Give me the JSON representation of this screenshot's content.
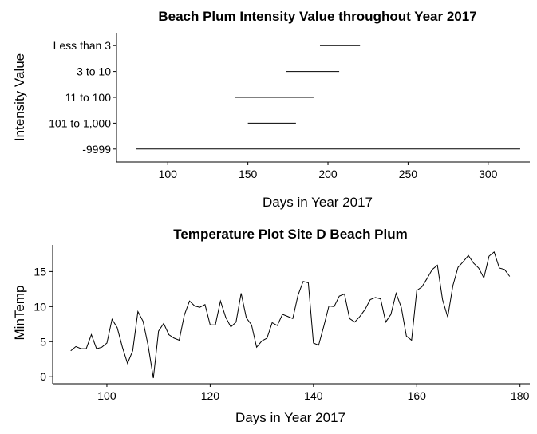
{
  "chart_data": [
    {
      "type": "range",
      "title": "Beach Plum Intensity Value throughout Year 2017",
      "xlabel": "Days in Year 2017",
      "ylabel": "Intensity Value",
      "xlim": [
        68,
        326
      ],
      "xticks": [
        100,
        150,
        200,
        250,
        300
      ],
      "categories": [
        "Less than 3",
        "3 to 10",
        "11 to 100",
        "101 to 1,000",
        "-9999"
      ],
      "ranges": [
        {
          "category": "Less than 3",
          "start": 195,
          "end": 220
        },
        {
          "category": "3 to 10",
          "start": 174,
          "end": 207
        },
        {
          "category": "11 to 100",
          "start": 142,
          "end": 191
        },
        {
          "category": "101 to 1,000",
          "start": 150,
          "end": 180
        },
        {
          "category": "-9999",
          "start": 80,
          "end": 320
        }
      ]
    },
    {
      "type": "line",
      "title": "Temperature Plot Site D Beach Plum",
      "xlabel": "Days in Year 2017",
      "ylabel": "MinTemp",
      "xlim": [
        89.5,
        181.9
      ],
      "ylim": [
        -1,
        18.8
      ],
      "xticks": [
        100,
        120,
        140,
        160,
        180
      ],
      "yticks": [
        0,
        5,
        10,
        15
      ],
      "x": [
        93,
        94,
        95,
        96,
        97,
        98,
        99,
        100,
        101,
        102,
        103,
        104,
        105,
        106,
        107,
        108,
        109,
        110,
        111,
        112,
        113,
        114,
        115,
        116,
        117,
        118,
        119,
        120,
        121,
        122,
        123,
        124,
        125,
        126,
        127,
        128,
        129,
        130,
        131,
        132,
        133,
        134,
        135,
        136,
        137,
        138,
        139,
        140,
        141,
        142,
        143,
        144,
        145,
        146,
        147,
        148,
        149,
        150,
        151,
        152,
        153,
        154,
        155,
        156,
        157,
        158,
        159,
        160,
        161,
        162,
        163,
        164,
        165,
        166,
        167,
        168,
        169,
        170,
        171,
        172,
        173,
        174,
        175,
        176,
        177,
        178
      ],
      "y": [
        3.7,
        4.3,
        4.0,
        4.0,
        6.0,
        4.0,
        4.2,
        4.8,
        8.2,
        7.0,
        4.2,
        1.9,
        3.7,
        9.3,
        7.9,
        4.4,
        -0.2,
        6.5,
        7.6,
        6.0,
        5.5,
        5.2,
        8.8,
        10.8,
        10.1,
        9.9,
        10.3,
        7.4,
        7.4,
        10.8,
        8.5,
        7.1,
        7.8,
        11.9,
        8.4,
        7.4,
        4.2,
        5.1,
        5.5,
        7.7,
        7.3,
        8.9,
        8.6,
        8.3,
        11.6,
        13.6,
        13.4,
        4.8,
        4.5,
        7.2,
        10.1,
        10.0,
        11.5,
        11.8,
        8.3,
        7.8,
        8.6,
        9.6,
        11.0,
        11.3,
        11.1,
        7.8,
        8.9,
        11.9,
        9.9,
        5.8,
        5.2,
        12.3,
        12.8,
        14.0,
        15.3,
        15.9,
        11.0,
        8.5,
        13.0,
        15.6,
        16.4,
        17.3,
        16.2,
        15.5,
        14.1,
        17.2,
        17.8,
        15.5,
        15.3,
        14.3
      ]
    }
  ]
}
